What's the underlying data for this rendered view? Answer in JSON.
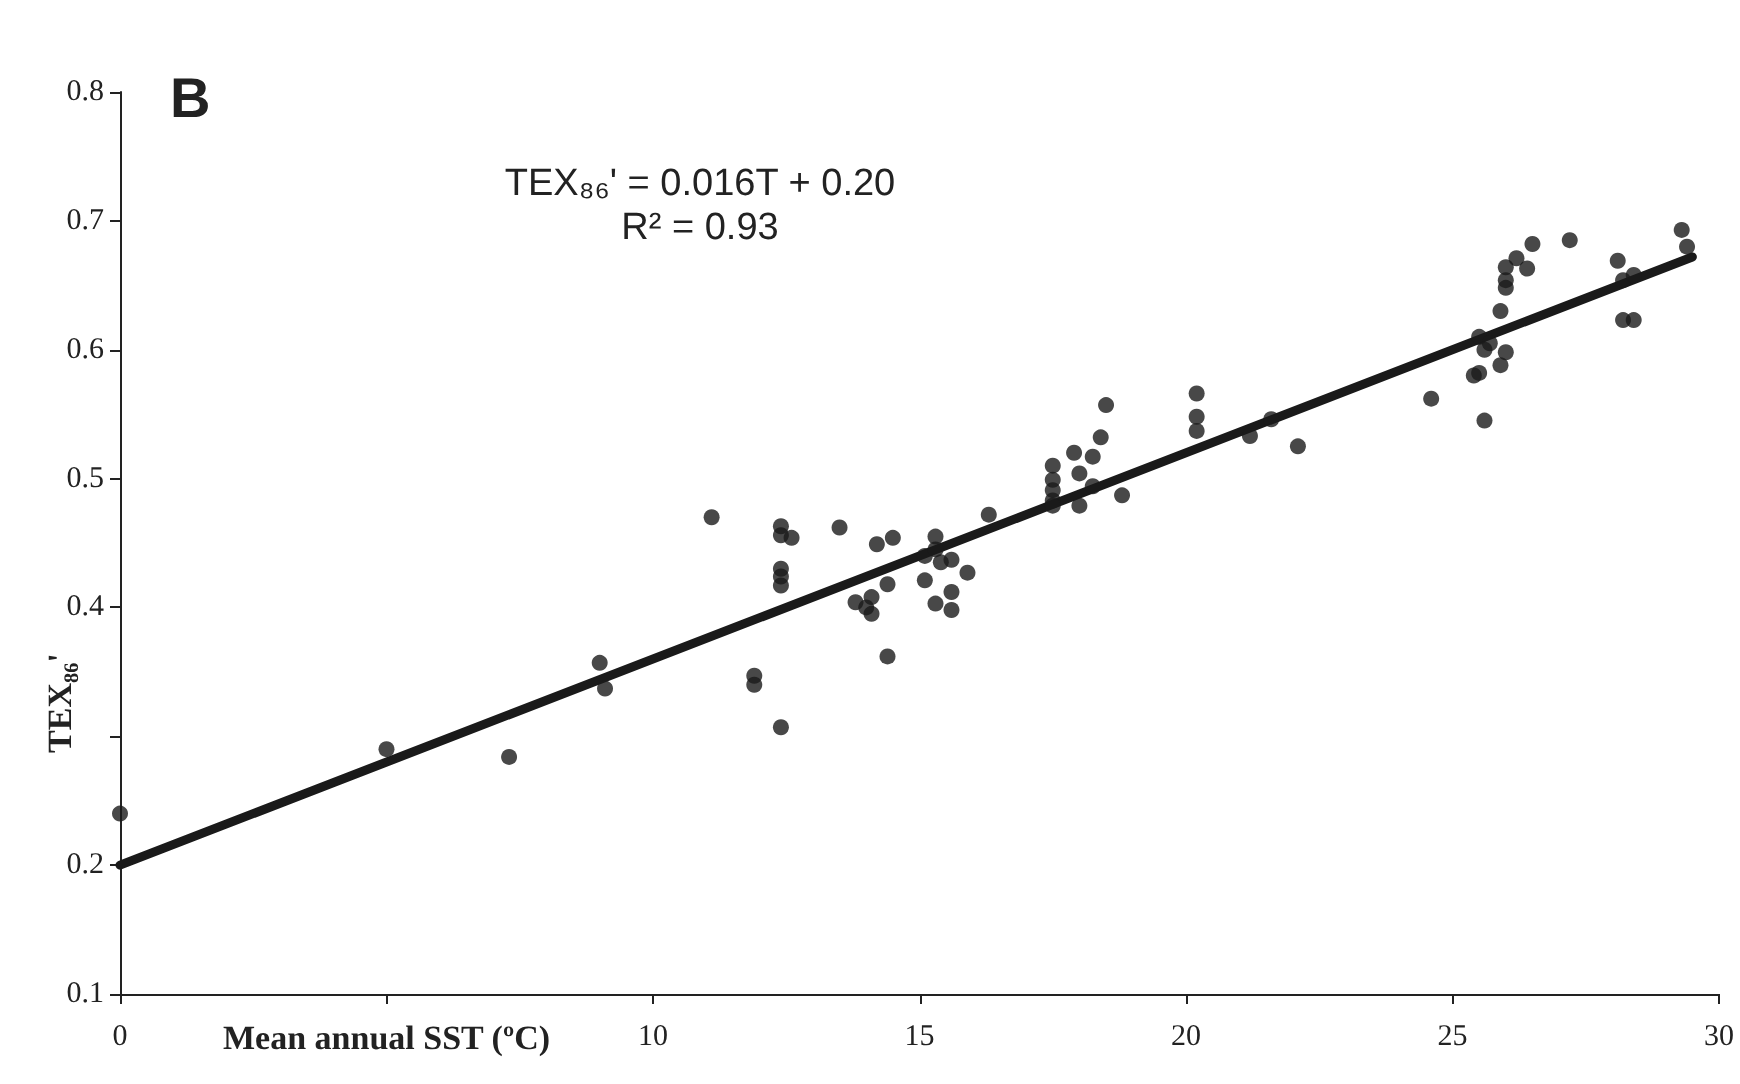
{
  "chart_data": {
    "type": "scatter",
    "title": "B",
    "xlabel": "Mean annual SST (ºC)",
    "ylabel": "TEX₈₆'",
    "annotations": [
      "TEX₈₆' = 0.016T + 0.20",
      "R² = 0.93"
    ],
    "xlim": [
      0,
      30
    ],
    "xticks": [
      0,
      {
        "value": 5,
        "label": null
      },
      10,
      15,
      20,
      25,
      30
    ],
    "ylim": [
      0.1,
      0.8
    ],
    "yticks": [
      0.1,
      0.2,
      {
        "value": 0.3,
        "label": null
      },
      0.4,
      0.5,
      0.6,
      0.7,
      0.8
    ],
    "grid": false,
    "series": [
      {
        "marker": "circle",
        "color": "#1a1a1a",
        "x": [
          0,
          5.0,
          7.3,
          9.0,
          9.1,
          11.1,
          11.9,
          11.9,
          12.4,
          12.4,
          12.4,
          12.6,
          12.4,
          12.4,
          12.4,
          13.5,
          13.8,
          14.0,
          14.1,
          14.1,
          14.2,
          14.5,
          14.4,
          14.4,
          15.1,
          15.3,
          15.6,
          15.6,
          15.6,
          15.9,
          15.3,
          15.1,
          15.3,
          15.4,
          16.3,
          17.5,
          17.5,
          17.5,
          17.5,
          17.5,
          18.0,
          18.25,
          18.8,
          17.9,
          18.0,
          18.25,
          18.4,
          18.5,
          20.2,
          20.2,
          20.2,
          21.2,
          21.6,
          22.1,
          24.6,
          25.6,
          25.4,
          25.5,
          25.9,
          26.0,
          25.5,
          25.7,
          25.6,
          25.9,
          26.0,
          26.0,
          26.0,
          26.2,
          26.4,
          26.5,
          27.2,
          28.1,
          28.2,
          28.2,
          28.4,
          28.4,
          29.3,
          29.4
        ],
        "values": [
          0.24,
          0.29,
          0.284,
          0.357,
          0.337,
          0.47,
          0.347,
          0.34,
          0.307,
          0.463,
          0.456,
          0.454,
          0.43,
          0.424,
          0.417,
          0.462,
          0.404,
          0.4,
          0.408,
          0.395,
          0.449,
          0.454,
          0.418,
          0.362,
          0.421,
          0.403,
          0.412,
          0.398,
          0.437,
          0.427,
          0.455,
          0.44,
          0.445,
          0.435,
          0.472,
          0.51,
          0.499,
          0.491,
          0.483,
          0.479,
          0.479,
          0.494,
          0.487,
          0.52,
          0.504,
          0.517,
          0.532,
          0.557,
          0.566,
          0.548,
          0.537,
          0.533,
          0.546,
          0.525,
          0.562,
          0.545,
          0.58,
          0.582,
          0.588,
          0.598,
          0.61,
          0.605,
          0.6,
          0.63,
          0.648,
          0.654,
          0.664,
          0.671,
          0.663,
          0.682,
          0.685,
          0.669,
          0.654,
          0.623,
          0.623,
          0.658,
          0.693,
          0.68
        ]
      },
      {
        "type": "line",
        "marker": "none",
        "line_style": "solid",
        "color": "#1a1a1a",
        "x": [
          0,
          29.5
        ],
        "values": [
          0.2,
          0.672
        ]
      }
    ]
  }
}
